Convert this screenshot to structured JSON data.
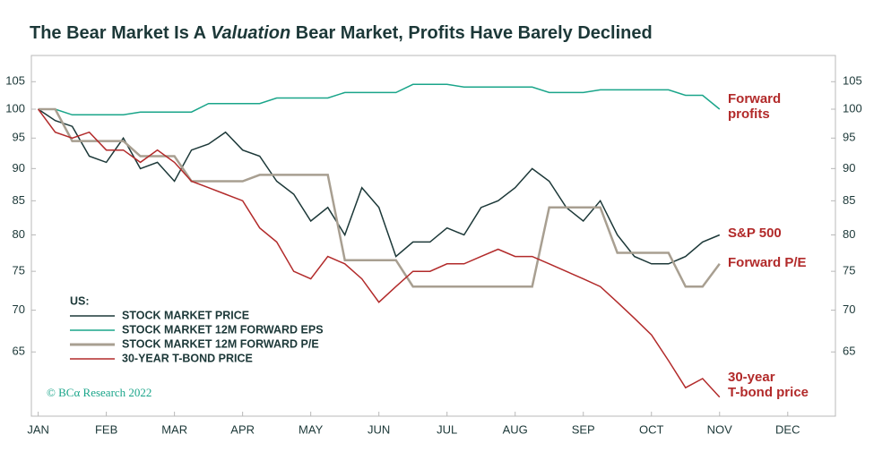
{
  "chart_data": {
    "type": "line",
    "title_parts": [
      "The Bear Market Is A ",
      "Valuation",
      " Bear Market, Profits Have Barely Declined"
    ],
    "log_scale": true,
    "ylim": [
      58,
      110
    ],
    "yticks": [
      65,
      70,
      75,
      80,
      85,
      90,
      95,
      100,
      105
    ],
    "y2lim": [
      58,
      110
    ],
    "y2ticks": [
      65,
      70,
      75,
      80,
      85,
      90,
      95,
      100,
      105
    ],
    "xlim": [
      -0.1,
      11.7
    ],
    "xticks": [
      {
        "value": 0,
        "label": "JAN"
      },
      {
        "value": 1,
        "label": "FEB"
      },
      {
        "value": 2,
        "label": "MAR"
      },
      {
        "value": 3,
        "label": "APR"
      },
      {
        "value": 4,
        "label": "MAY"
      },
      {
        "value": 5,
        "label": "JUN"
      },
      {
        "value": 6,
        "label": "JUL"
      },
      {
        "value": 7,
        "label": "AUG"
      },
      {
        "value": 8,
        "label": "SEP"
      },
      {
        "value": 9,
        "label": "OCT"
      },
      {
        "value": 10,
        "label": "NOV"
      },
      {
        "value": 11,
        "label": "DEC"
      }
    ],
    "x": [
      0,
      0.25,
      0.5,
      0.75,
      1,
      1.25,
      1.5,
      1.75,
      2,
      2.25,
      2.5,
      2.75,
      3,
      3.25,
      3.5,
      3.75,
      4,
      4.25,
      4.5,
      4.75,
      5,
      5.25,
      5.5,
      5.75,
      6,
      6.25,
      6.5,
      6.75,
      7,
      7.25,
      7.5,
      7.75,
      8,
      8.25,
      8.5,
      8.75,
      9,
      9.25,
      9.5,
      9.75,
      10
    ],
    "legend_title": "US:",
    "series": [
      {
        "name": "STOCK MARKET PRICE",
        "color": "#1c3838",
        "values": [
          100,
          98,
          97,
          92,
          91,
          95,
          90,
          91,
          88,
          93,
          94,
          96,
          93,
          92,
          88,
          86,
          82,
          84,
          80,
          87,
          84,
          77,
          79,
          79,
          81,
          80,
          84,
          85,
          87,
          90,
          88,
          84,
          82,
          85,
          80,
          77,
          76,
          76,
          77,
          79,
          80
        ]
      },
      {
        "name": "STOCK MARKET 12M FORWARD EPS",
        "color": "#1aa58a",
        "values": [
          100,
          100,
          99,
          99,
          99,
          99,
          99.5,
          99.5,
          99.5,
          99.5,
          101,
          101,
          101,
          101,
          102,
          102,
          102,
          102,
          103,
          103,
          103,
          103,
          104.5,
          104.5,
          104.5,
          104,
          104,
          104,
          104,
          104,
          103,
          103,
          103,
          103.5,
          103.5,
          103.5,
          103.5,
          103.5,
          102.5,
          102.5,
          100
        ]
      },
      {
        "name": "STOCK MARKET 12M FORWARD P/E",
        "color": "#a89f91",
        "values": [
          100,
          100,
          94.5,
          94.5,
          94.5,
          94.5,
          92,
          92,
          92,
          88,
          88,
          88,
          88,
          89,
          89,
          89,
          89,
          89,
          76.5,
          76.5,
          76.5,
          76.5,
          73,
          73,
          73,
          73,
          73,
          73,
          73,
          73,
          84,
          84,
          84,
          84,
          77.5,
          77.5,
          77.5,
          77.5,
          73,
          73,
          76
        ]
      },
      {
        "name": "30-YEAR T-BOND PRICE",
        "color": "#b22a2a",
        "values": [
          100,
          96,
          95,
          96,
          93,
          93,
          91,
          93,
          91,
          88,
          87,
          86,
          85,
          81,
          79,
          75,
          74,
          77,
          76,
          74,
          71,
          73,
          75,
          75,
          76,
          76,
          77,
          78,
          77,
          77,
          76,
          75,
          74,
          73,
          71,
          69,
          67,
          64,
          61,
          62,
          60
        ]
      }
    ],
    "annotations": [
      {
        "lines": [
          "Forward",
          "profits"
        ],
        "color": "#b22a2a"
      },
      {
        "lines": [
          "S&P 500"
        ],
        "color": "#b22a2a"
      },
      {
        "lines": [
          "Forward P/E"
        ],
        "color": "#b22a2a"
      },
      {
        "lines": [
          "30-year",
          "T-bond price"
        ],
        "color": "#b22a2a"
      }
    ],
    "source": "© BCα Research 2022"
  }
}
